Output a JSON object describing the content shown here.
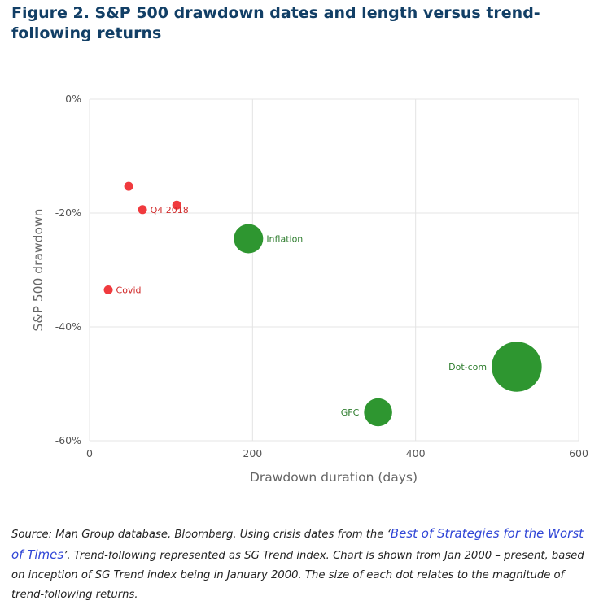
{
  "figure": {
    "title": "Figure 2. S&P 500 drawdown dates and length versus trend-following returns",
    "source_prefix": "Source: Man Group database, Bloomberg. Using crisis dates from the ‘",
    "source_link": "Best of Strategies for the Worst of Times",
    "source_suffix": "’. Trend-following represented as SG Trend index. Chart is shown from Jan 2000 – present, based on inception of SG Trend index being in January 2000. The size of each dot relates to the magnitude of trend-following returns."
  },
  "colors": {
    "positive": "#2e9630",
    "negative": "#f03a3e",
    "positive_label": "#2e7d2e",
    "negative_label": "#d12a2a",
    "grid": "#e4e4e4",
    "axis_text": "#555555"
  },
  "chart_data": {
    "type": "scatter",
    "xlabel": "Drawdown duration (days)",
    "ylabel": "S&P 500 drawdown",
    "xlim": [
      0,
      600
    ],
    "ylim": [
      -60,
      0
    ],
    "xticks": [
      0,
      200,
      400,
      600
    ],
    "xtick_labels": [
      "0",
      "200",
      "400",
      "600"
    ],
    "yticks": [
      0,
      -20,
      -40,
      -60
    ],
    "ytick_labels": [
      "0%",
      "-20%",
      "-40%",
      "-60%"
    ],
    "grid": true,
    "points": [
      {
        "name": "",
        "label": "",
        "x": 48,
        "y": -15.3,
        "trend_return": -1,
        "sign": "negative"
      },
      {
        "name": "q4-2018",
        "label": "Q4 2018",
        "x": 65,
        "y": -19.4,
        "trend_return": -1,
        "sign": "negative"
      },
      {
        "name": "",
        "label": "",
        "x": 107,
        "y": -18.6,
        "trend_return": -1,
        "sign": "negative"
      },
      {
        "name": "covid",
        "label": "Covid",
        "x": 23,
        "y": -33.5,
        "trend_return": -1,
        "sign": "negative"
      },
      {
        "name": "inflation",
        "label": "Inflation",
        "x": 195,
        "y": -24.5,
        "trend_return": 18,
        "sign": "positive"
      },
      {
        "name": "dot-com",
        "label": "Dot-com",
        "x": 524,
        "y": -47.0,
        "trend_return": 35,
        "sign": "positive"
      },
      {
        "name": "gfc",
        "label": "GFC",
        "x": 354,
        "y": -55.0,
        "trend_return": 17,
        "sign": "positive"
      }
    ]
  }
}
